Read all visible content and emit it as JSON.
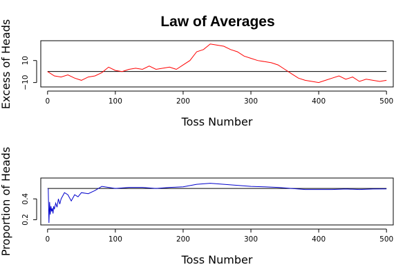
{
  "title": "Law of Averages",
  "chart_data": [
    {
      "type": "line",
      "xlabel": "Toss Number",
      "ylabel": "Excess of Heads",
      "xlim": [
        -10,
        510
      ],
      "ylim": [
        -14,
        28
      ],
      "x_ticks": [
        0,
        100,
        200,
        300,
        400,
        500
      ],
      "x_tick_labels": [
        "0",
        "100",
        "200",
        "300",
        "400",
        "500"
      ],
      "y_ticks": [
        -10,
        10
      ],
      "y_tick_labels": [
        "−10",
        "10"
      ],
      "reference_line": 0,
      "reference_color": "#000000",
      "series": [
        {
          "color": "#ff0000",
          "x": [
            0,
            10,
            20,
            30,
            40,
            50,
            60,
            70,
            80,
            90,
            100,
            110,
            120,
            130,
            140,
            150,
            160,
            170,
            180,
            190,
            200,
            210,
            220,
            230,
            240,
            250,
            260,
            270,
            280,
            290,
            300,
            310,
            320,
            330,
            340,
            350,
            360,
            370,
            380,
            390,
            400,
            410,
            420,
            430,
            440,
            450,
            460,
            470,
            480,
            490,
            500
          ],
          "y": [
            0,
            -4,
            -5,
            -3,
            -6,
            -8,
            -5,
            -4,
            -1,
            4,
            1,
            0,
            2,
            3,
            2,
            5,
            2,
            3,
            4,
            2,
            6,
            10,
            18,
            20,
            25,
            24,
            23,
            20,
            18,
            14,
            12,
            10,
            9,
            8,
            6,
            2,
            -2,
            -6,
            -8,
            -9,
            -10,
            -8,
            -6,
            -4,
            -7,
            -5,
            -9,
            -7,
            -8,
            -9,
            -8
          ]
        }
      ]
    },
    {
      "type": "line",
      "xlabel": "Toss Number",
      "ylabel": "Proportion of Heads",
      "xlim": [
        -10,
        510
      ],
      "ylim": [
        0.15,
        0.6
      ],
      "x_ticks": [
        0,
        100,
        200,
        300,
        400,
        500
      ],
      "x_tick_labels": [
        "0",
        "100",
        "200",
        "300",
        "400",
        "500"
      ],
      "y_ticks": [
        0.2,
        0.4
      ],
      "y_tick_labels": [
        "0.2",
        "0.4"
      ],
      "reference_line": 0.5,
      "reference_color": "#000000",
      "series": [
        {
          "color": "#0000cc",
          "x": [
            1,
            2,
            3,
            4,
            5,
            6,
            7,
            8,
            9,
            10,
            12,
            14,
            16,
            18,
            20,
            25,
            30,
            35,
            40,
            45,
            50,
            60,
            70,
            80,
            90,
            100,
            120,
            140,
            160,
            180,
            200,
            220,
            240,
            260,
            280,
            300,
            320,
            340,
            360,
            380,
            400,
            420,
            440,
            460,
            480,
            500
          ],
          "y": [
            0.5,
            0.17,
            0.37,
            0.25,
            0.33,
            0.28,
            0.31,
            0.26,
            0.33,
            0.3,
            0.36,
            0.32,
            0.4,
            0.35,
            0.4,
            0.46,
            0.44,
            0.38,
            0.44,
            0.42,
            0.46,
            0.45,
            0.48,
            0.52,
            0.51,
            0.5,
            0.51,
            0.51,
            0.5,
            0.51,
            0.515,
            0.54,
            0.55,
            0.54,
            0.53,
            0.52,
            0.515,
            0.51,
            0.5,
            0.49,
            0.49,
            0.49,
            0.495,
            0.49,
            0.495,
            0.496
          ]
        }
      ]
    }
  ]
}
